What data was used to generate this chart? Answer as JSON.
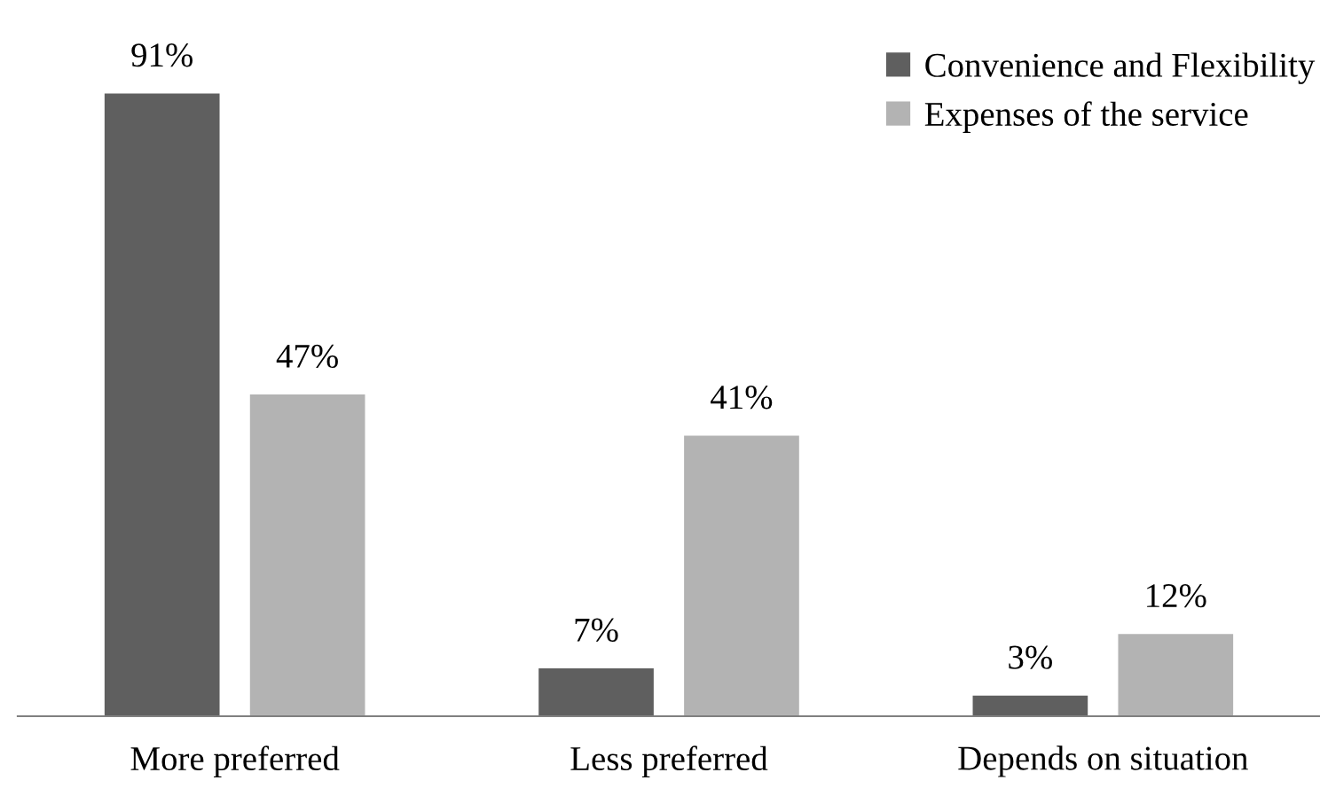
{
  "chart_data": {
    "type": "bar",
    "categories": [
      "More preferred",
      "Less preferred",
      "Depends on situation"
    ],
    "series": [
      {
        "name": "Convenience and Flexibility",
        "color": "#5f5f5f",
        "values": [
          91,
          7,
          3
        ],
        "value_labels": [
          "91%",
          "7%",
          "3%"
        ]
      },
      {
        "name": "Expenses of the service",
        "color": "#b3b3b3",
        "values": [
          47,
          41,
          12
        ],
        "value_labels": [
          "47%",
          "41%",
          "12%"
        ]
      }
    ],
    "tick_labels": "x",
    "grid": false,
    "legend": "top right"
  }
}
